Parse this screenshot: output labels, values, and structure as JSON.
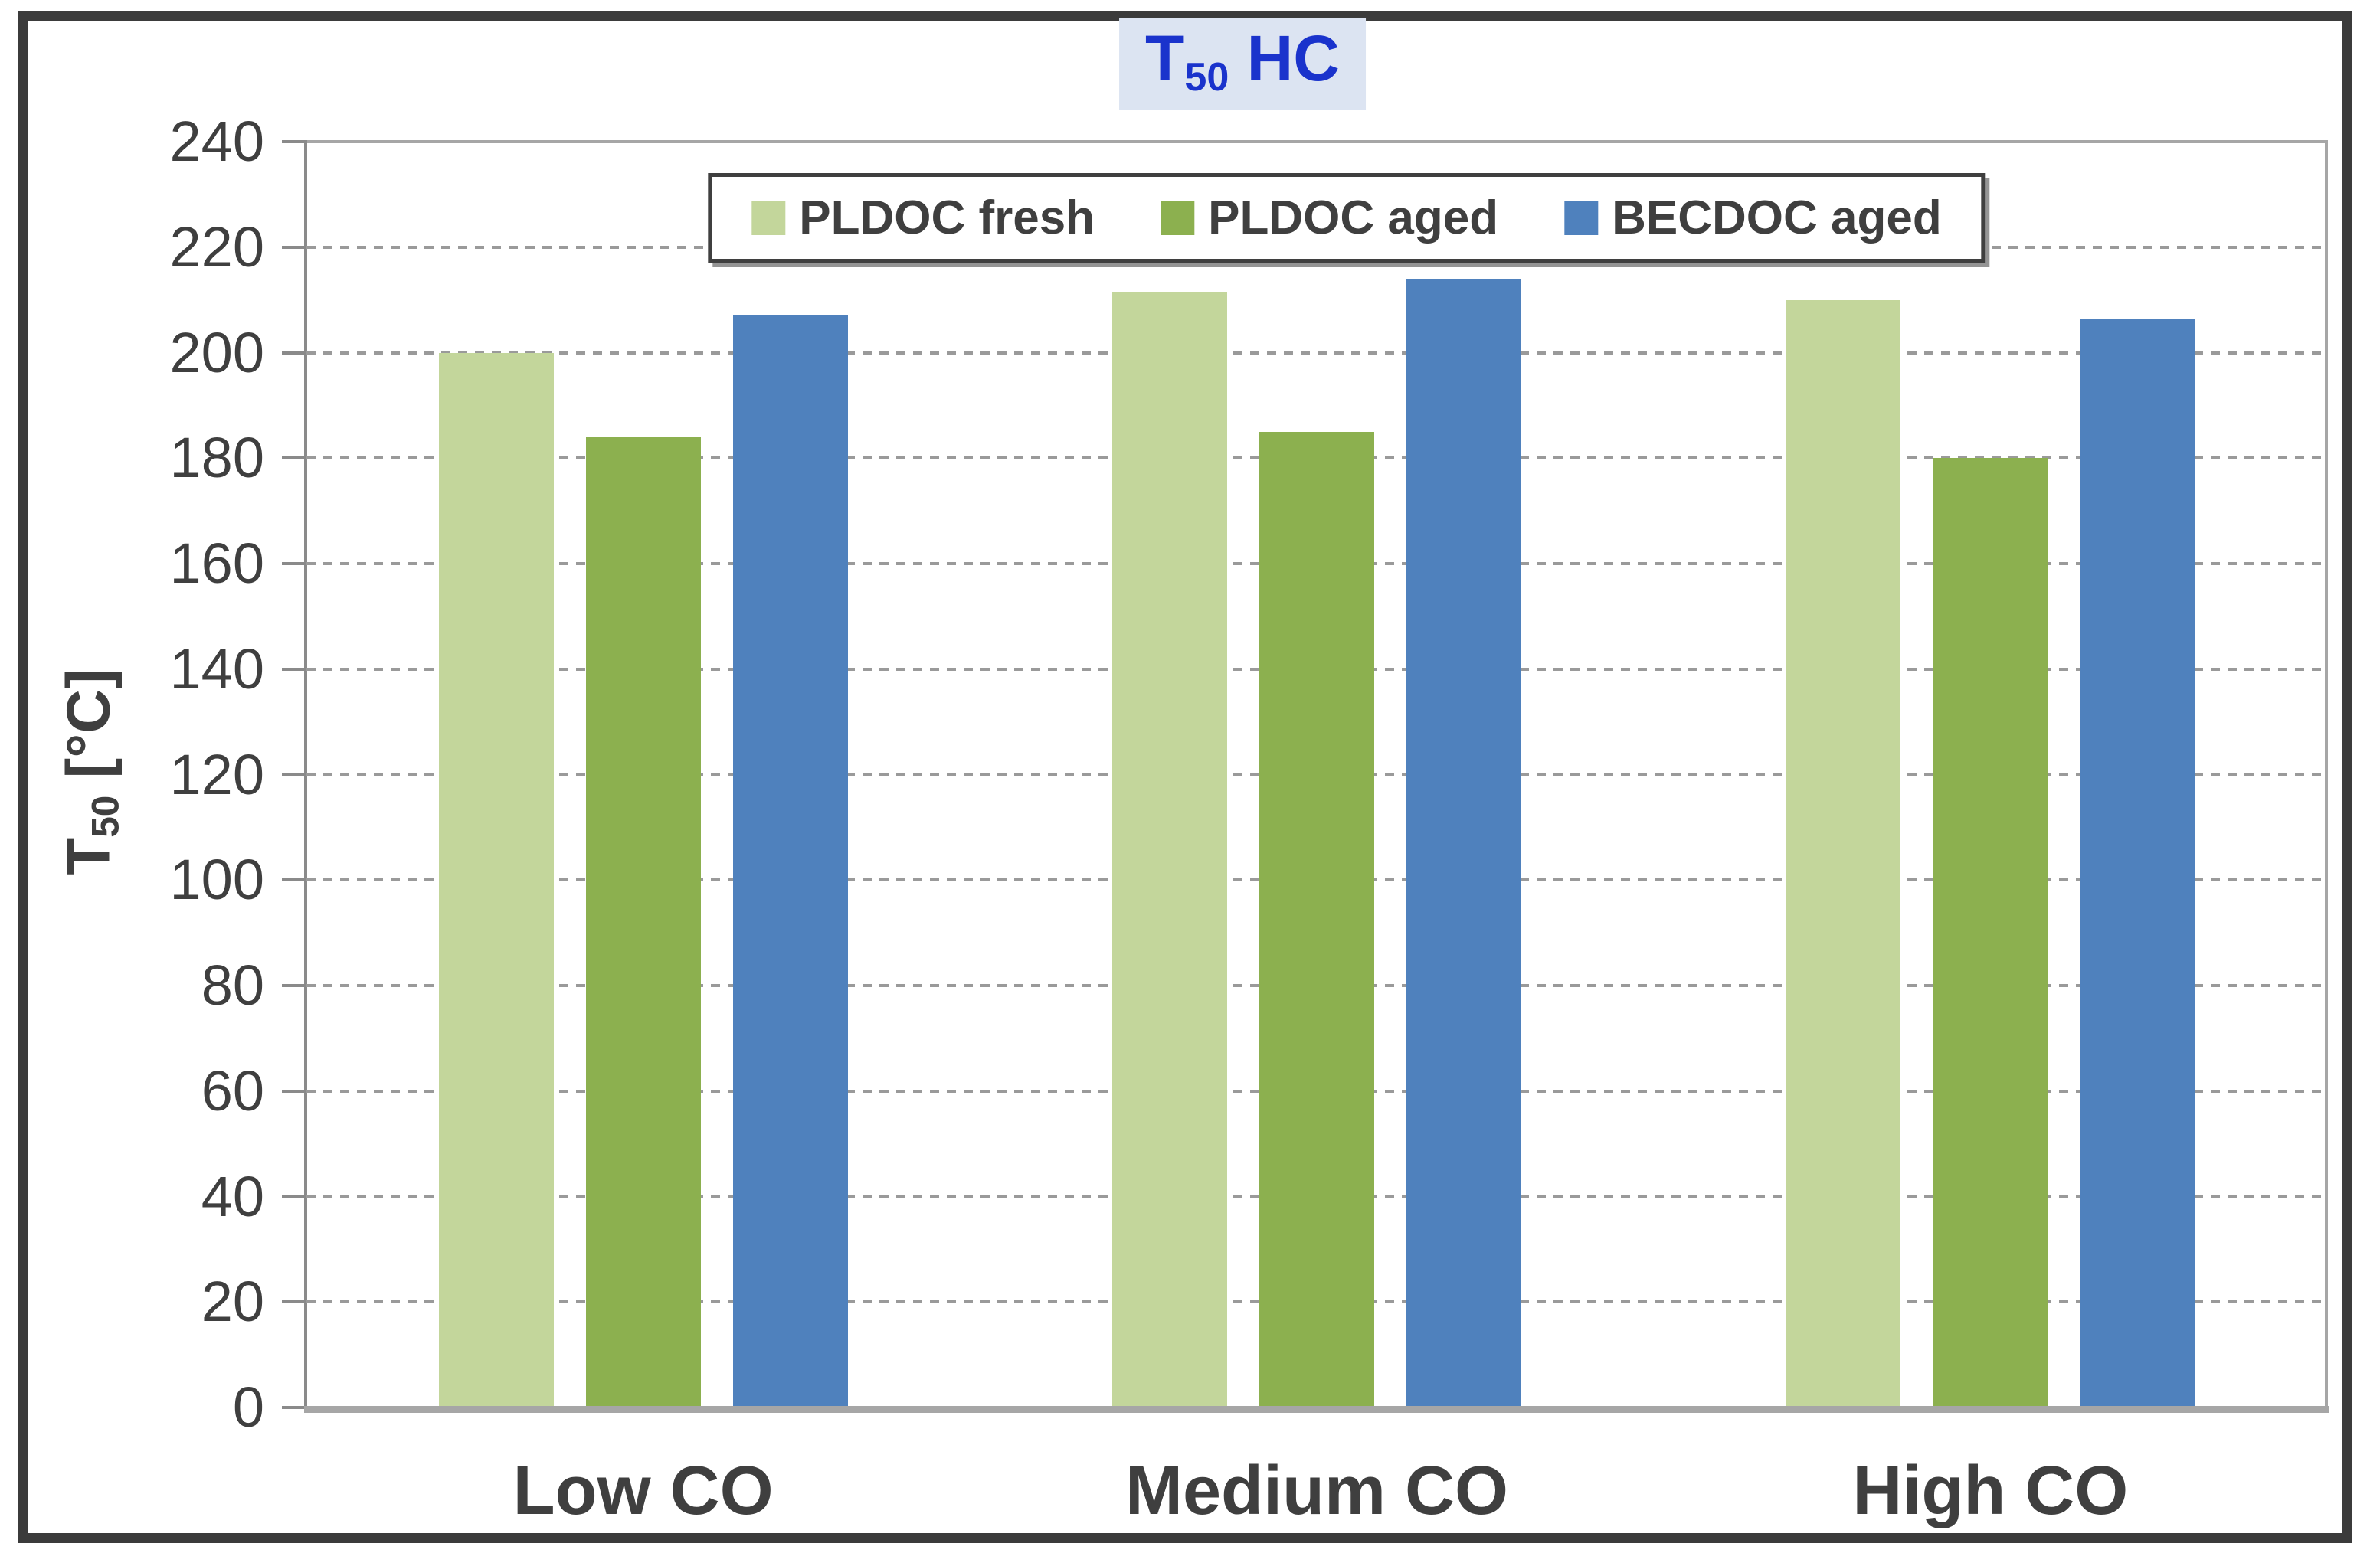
{
  "title": {
    "base": "T",
    "subscript": "50",
    "suffix": " HC"
  },
  "y_axis_title": {
    "base": "T",
    "subscript": "50",
    "unit": " [°C]"
  },
  "colors": {
    "title_text": "#1a33cc",
    "title_background": "#dce4f2",
    "axis_text": "#3f3f3f",
    "gridline": "#9a9a9a",
    "series_fresh": "#c3d69b",
    "series_aged": "#8cb04f",
    "series_becdoc": "#4f81bd"
  },
  "chart_data": {
    "type": "bar",
    "title": "T50 HC",
    "categories": [
      "Low CO",
      "Medium CO",
      "High CO"
    ],
    "series": [
      {
        "name": "PLDOC fresh",
        "color": "#c3d69b",
        "values": [
          200,
          211.5,
          210
        ]
      },
      {
        "name": "PLDOC aged",
        "color": "#8cb04f",
        "values": [
          184,
          185,
          180
        ]
      },
      {
        "name": "BECDOC aged",
        "color": "#4f81bd",
        "values": [
          207,
          214,
          206.5
        ]
      }
    ],
    "xlabel": "",
    "ylabel": "T50 [°C]",
    "ylim": [
      0,
      240
    ],
    "ytick_step": 20,
    "yticks": [
      0,
      20,
      40,
      60,
      80,
      100,
      120,
      140,
      160,
      180,
      200,
      220,
      240
    ],
    "grid": "horizontal-dashed",
    "legend_position": "top-center",
    "legend_entries": [
      "PLDOC fresh",
      "PLDOC aged",
      "BECDOC aged"
    ]
  }
}
